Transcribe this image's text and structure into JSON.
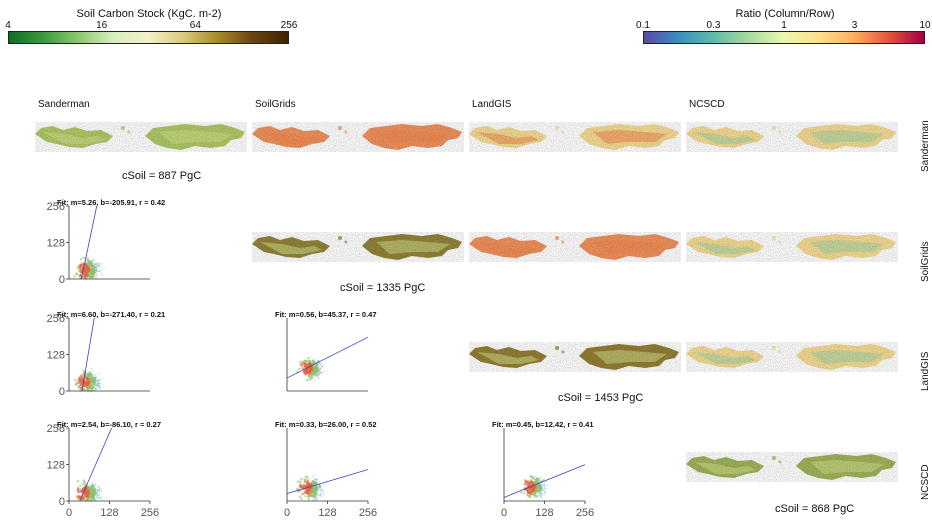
{
  "colorbars": {
    "soil": {
      "title": "Soil Carbon Stock (KgC. m-2)",
      "ticks": [
        "4",
        "16",
        "64",
        "256"
      ],
      "colors": [
        "#0f6e2a",
        "#3c9b3c",
        "#8cc96a",
        "#d8efc0",
        "#f2f0c8",
        "#d9c97a",
        "#a58a2a",
        "#6b4310",
        "#3e2204"
      ]
    },
    "ratio": {
      "title": "Ratio (Column/Row)",
      "ticks": [
        "0.1",
        "0.3",
        "1",
        "3",
        "10"
      ],
      "colors": [
        "#5b4aa5",
        "#3a8fc0",
        "#5fbca8",
        "#a6dba0",
        "#ecf7ad",
        "#fee08b",
        "#fdae61",
        "#e2553c",
        "#9e0142"
      ]
    }
  },
  "columns": [
    "Sanderman",
    "SoilGrids",
    "LandGIS",
    "NCSCD"
  ],
  "rows": [
    "Sanderman",
    "SoilGrids",
    "LandGIS",
    "NCSCD"
  ],
  "csoil": [
    "cSoil = 887 PgC",
    "cSoil = 1335 PgC",
    "cSoil = 1453 PgC",
    "cSoil = 868 PgC"
  ],
  "map_tones": {
    "diag_sanderman": "#a9c45a",
    "diag_soilgrids": "#8a7a28",
    "diag_landgis": "#8c7424",
    "diag_ncscd": "#98ae4c",
    "ratio_high": "#f0894f",
    "ratio_mid": "#f4d88a",
    "ratio_low": "#9fd3a6"
  },
  "chart_data": [
    {
      "type": "scatter",
      "row": "SoilGrids",
      "column": "Sanderman",
      "fit": {
        "m": 5.26,
        "b": -205.91,
        "r": 0.42
      },
      "fit_label": "Fit: m=5.26, b=-205.91, r = 0.42",
      "xlim": [
        0,
        256
      ],
      "ylim": [
        0,
        256
      ],
      "yticks": [
        "0",
        "128",
        "256"
      ],
      "xticks": []
    },
    {
      "type": "scatter",
      "row": "LandGIS",
      "column": "Sanderman",
      "fit": {
        "m": 6.6,
        "b": -271.4,
        "r": 0.21
      },
      "fit_label": "Fit: m=6.60, b=-271.40, r = 0.21",
      "xlim": [
        0,
        256
      ],
      "ylim": [
        0,
        256
      ],
      "yticks": [
        "0",
        "128",
        "256"
      ],
      "xticks": []
    },
    {
      "type": "scatter",
      "row": "LandGIS",
      "column": "SoilGrids",
      "fit": {
        "m": 0.56,
        "b": 45.37,
        "r": 0.47
      },
      "fit_label": "Fit: m=0.56, b=45.37, r = 0.47",
      "xlim": [
        0,
        256
      ],
      "ylim": [
        0,
        256
      ],
      "yticks": [],
      "xticks": []
    },
    {
      "type": "scatter",
      "row": "NCSCD",
      "column": "Sanderman",
      "fit": {
        "m": 2.54,
        "b": -86.1,
        "r": 0.27
      },
      "fit_label": "Fit: m=2.54, b=-86.10, r = 0.27",
      "xlim": [
        0,
        256
      ],
      "ylim": [
        0,
        256
      ],
      "yticks": [
        "0",
        "128",
        "256"
      ],
      "xticks": [
        "0",
        "128",
        "256"
      ]
    },
    {
      "type": "scatter",
      "row": "NCSCD",
      "column": "SoilGrids",
      "fit": {
        "m": 0.33,
        "b": 26.0,
        "r": 0.52
      },
      "fit_label": "Fit: m=0.33, b=26.00, r = 0.52",
      "xlim": [
        0,
        256
      ],
      "ylim": [
        0,
        256
      ],
      "yticks": [],
      "xticks": [
        "0",
        "128",
        "256"
      ]
    },
    {
      "type": "scatter",
      "row": "NCSCD",
      "column": "LandGIS",
      "fit": {
        "m": 0.45,
        "b": 12.42,
        "r": 0.41
      },
      "fit_label": "Fit: m=0.45, b=12.42, r = 0.41",
      "xlim": [
        0,
        256
      ],
      "ylim": [
        0,
        256
      ],
      "yticks": [],
      "xticks": [
        "0",
        "128",
        "256"
      ]
    }
  ]
}
